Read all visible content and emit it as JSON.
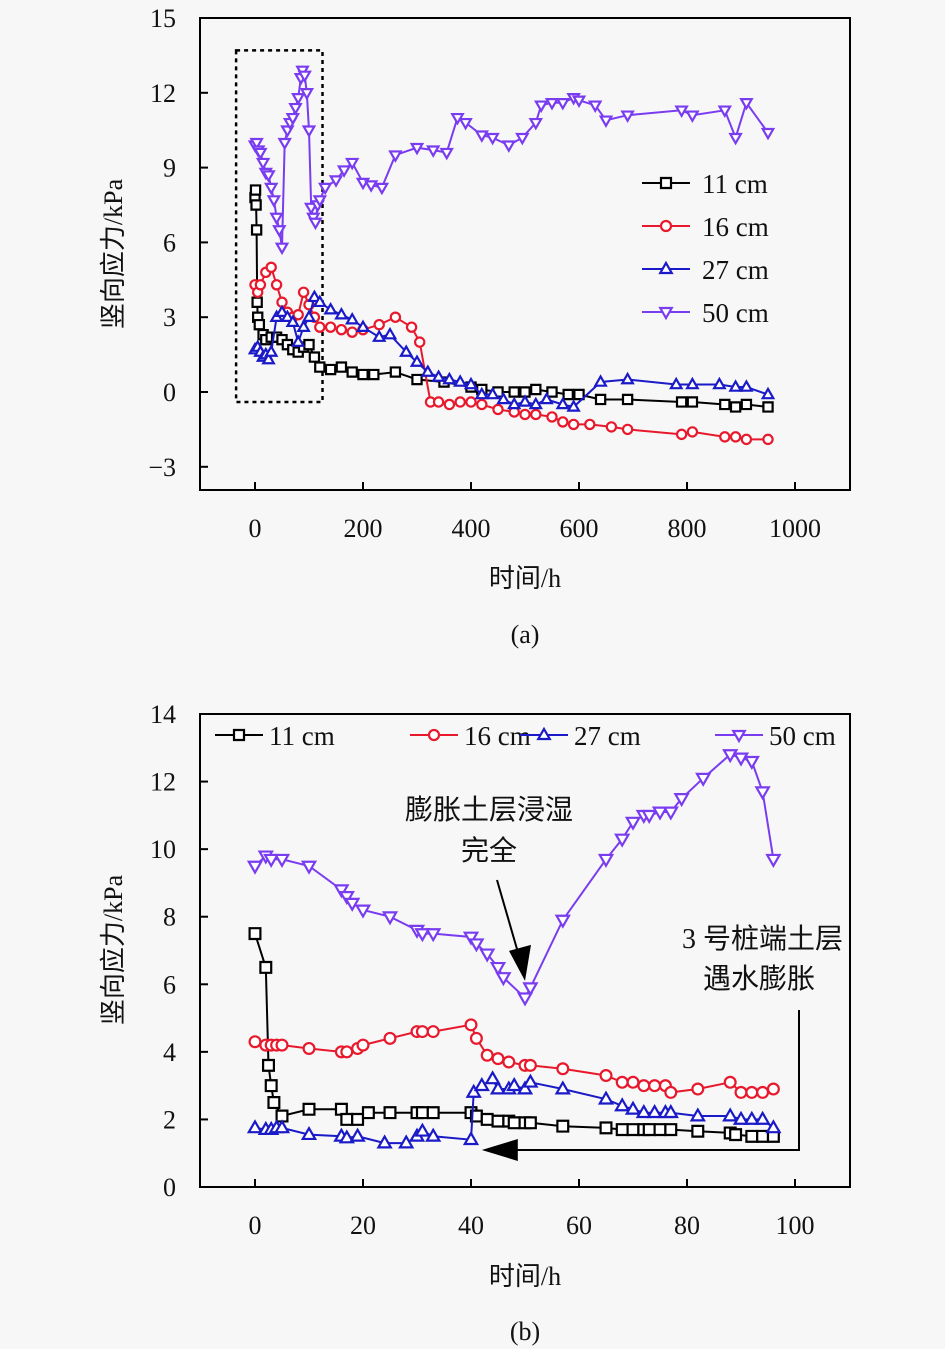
{
  "chart_data": [
    {
      "id": "a",
      "type": "line",
      "panel_label": "(a)",
      "xlabel": "时间/h",
      "ylabel": "竖向应力/kPa",
      "xlim": [
        -100,
        1100
      ],
      "ylim": [
        -4,
        15
      ],
      "xticks": [
        0,
        200,
        400,
        600,
        800,
        1000
      ],
      "xtick_labels": [
        "0",
        "200",
        "400",
        "600",
        "800",
        "1000"
      ],
      "yticks": [
        -3,
        0,
        3,
        6,
        9,
        12,
        15
      ],
      "ytick_labels": [
        "−3",
        "0",
        "3",
        "6",
        "9",
        "12",
        "15"
      ],
      "legend": {
        "placement": "right-middle",
        "entries": [
          "11 cm",
          "16 cm",
          "27 cm",
          "50 cm"
        ]
      },
      "highlight_box": {
        "x_range": [
          -35,
          125
        ],
        "y_range": [
          -0.4,
          13.7
        ],
        "style": "dashed"
      },
      "series": [
        {
          "name": "11 cm",
          "color": "#000000",
          "marker": "square",
          "x": [
            0,
            1,
            2,
            3,
            4,
            5,
            8,
            15,
            20,
            30,
            40,
            50,
            60,
            70,
            80,
            90,
            100,
            110,
            120,
            140,
            160,
            180,
            200,
            220,
            260,
            300,
            350,
            400,
            420,
            450,
            480,
            500,
            520,
            550,
            580,
            600,
            640,
            690,
            790,
            810,
            870,
            890,
            910,
            950
          ],
          "y": [
            7.8,
            8.1,
            7.5,
            6.5,
            3.6,
            3.0,
            2.7,
            2.3,
            2.1,
            2.2,
            2.2,
            2.1,
            1.9,
            1.7,
            1.6,
            1.8,
            1.9,
            1.4,
            1.0,
            0.9,
            1.0,
            0.8,
            0.7,
            0.7,
            0.8,
            0.5,
            0.4,
            0.2,
            0.1,
            0.0,
            0.0,
            0.0,
            0.1,
            0.0,
            -0.1,
            -0.1,
            -0.3,
            -0.3,
            -0.4,
            -0.4,
            -0.5,
            -0.6,
            -0.5,
            -0.6
          ]
        },
        {
          "name": "16 cm",
          "color": "#e8192c",
          "marker": "circle",
          "x": [
            0,
            5,
            10,
            20,
            30,
            40,
            50,
            60,
            70,
            80,
            90,
            100,
            110,
            120,
            140,
            160,
            180,
            200,
            230,
            260,
            290,
            305,
            325,
            340,
            360,
            380,
            400,
            420,
            450,
            480,
            500,
            520,
            550,
            570,
            590,
            620,
            660,
            690,
            790,
            810,
            870,
            890,
            910,
            950
          ],
          "y": [
            4.3,
            4.0,
            4.3,
            4.8,
            5.0,
            4.3,
            3.6,
            3.2,
            3.0,
            3.1,
            4.0,
            3.5,
            3.0,
            2.6,
            2.6,
            2.5,
            2.4,
            2.5,
            2.7,
            3.0,
            2.6,
            2.0,
            -0.4,
            -0.4,
            -0.5,
            -0.4,
            -0.4,
            -0.5,
            -0.7,
            -0.8,
            -0.9,
            -0.9,
            -1.0,
            -1.2,
            -1.3,
            -1.3,
            -1.4,
            -1.5,
            -1.7,
            -1.6,
            -1.8,
            -1.8,
            -1.9,
            -1.9
          ]
        },
        {
          "name": "27 cm",
          "color": "#1a1ac8",
          "marker": "triangle-up",
          "x": [
            0,
            5,
            10,
            15,
            20,
            25,
            30,
            40,
            50,
            60,
            70,
            80,
            90,
            100,
            110,
            120,
            140,
            160,
            180,
            200,
            230,
            250,
            280,
            300,
            320,
            340,
            360,
            380,
            400,
            420,
            440,
            460,
            480,
            500,
            520,
            540,
            570,
            590,
            640,
            690,
            780,
            810,
            860,
            890,
            910,
            950
          ],
          "y": [
            1.7,
            1.8,
            1.6,
            1.4,
            1.5,
            1.3,
            1.6,
            3.0,
            3.2,
            3.0,
            2.8,
            2.0,
            2.6,
            3.0,
            3.8,
            3.6,
            3.3,
            3.1,
            2.9,
            2.6,
            2.2,
            2.3,
            1.6,
            1.2,
            0.8,
            0.6,
            0.5,
            0.4,
            0.3,
            -0.1,
            -0.1,
            -0.3,
            -0.5,
            -0.4,
            -0.5,
            -0.3,
            -0.5,
            -0.6,
            0.4,
            0.5,
            0.3,
            0.3,
            0.3,
            0.2,
            0.2,
            -0.1
          ]
        },
        {
          "name": "50 cm",
          "color": "#7a3cf0",
          "marker": "triangle-down",
          "x": [
            0,
            3,
            6,
            10,
            15,
            20,
            25,
            30,
            35,
            40,
            45,
            50,
            55,
            60,
            65,
            70,
            75,
            80,
            85,
            88,
            92,
            96,
            100,
            104,
            108,
            112,
            116,
            120,
            130,
            150,
            165,
            180,
            200,
            215,
            235,
            260,
            300,
            330,
            355,
            375,
            390,
            420,
            440,
            470,
            495,
            520,
            530,
            550,
            570,
            590,
            600,
            630,
            650,
            690,
            790,
            810,
            870,
            890,
            910,
            950
          ],
          "y": [
            9.9,
            10.0,
            9.7,
            9.6,
            9.2,
            8.8,
            8.7,
            8.2,
            7.7,
            7.0,
            6.5,
            5.8,
            10.0,
            10.5,
            10.8,
            11.0,
            11.4,
            11.8,
            12.6,
            12.9,
            12.7,
            12.0,
            10.5,
            7.4,
            7.0,
            6.8,
            7.5,
            7.7,
            8.2,
            8.5,
            8.9,
            9.2,
            8.4,
            8.3,
            8.2,
            9.5,
            9.8,
            9.7,
            9.6,
            11.0,
            10.8,
            10.3,
            10.2,
            9.9,
            10.2,
            10.8,
            11.5,
            11.6,
            11.6,
            11.8,
            11.7,
            11.5,
            10.9,
            11.1,
            11.3,
            11.1,
            11.3,
            10.2,
            11.6,
            10.4
          ]
        }
      ]
    },
    {
      "id": "b",
      "type": "line",
      "panel_label": "(b)",
      "xlabel": "时间/h",
      "ylabel": "竖向应力/kPa",
      "xlim": [
        -10,
        110
      ],
      "ylim": [
        0,
        14
      ],
      "xticks": [
        0,
        20,
        40,
        60,
        80,
        100
      ],
      "xtick_labels": [
        "0",
        "20",
        "40",
        "60",
        "80",
        "100"
      ],
      "yticks": [
        0,
        2,
        4,
        6,
        8,
        10,
        12,
        14
      ],
      "ytick_labels": [
        "0",
        "2",
        "4",
        "6",
        "8",
        "10",
        "12",
        "14"
      ],
      "legend": {
        "placement": "top",
        "entries": [
          "11 cm",
          "16 cm",
          "27 cm",
          "50 cm"
        ]
      },
      "annotations": [
        {
          "text_lines": [
            "膨胀土层浸湿",
            "完全"
          ],
          "arrow_to": [
            50,
            6.1
          ]
        },
        {
          "text_lines": [
            "3 号桩端土层",
            "遇水膨胀"
          ],
          "arrow_to": [
            42,
            1.05
          ]
        }
      ],
      "series": [
        {
          "name": "11 cm",
          "color": "#000000",
          "marker": "square",
          "x": [
            0,
            2,
            2.5,
            3,
            3.5,
            5,
            10,
            16,
            17,
            19,
            21,
            25,
            30,
            31,
            33,
            40,
            41,
            43,
            45,
            47,
            48,
            50,
            51,
            57,
            65,
            68,
            70,
            72,
            73,
            75,
            77,
            82,
            88,
            89,
            92,
            94,
            96
          ],
          "y": [
            7.5,
            6.5,
            3.6,
            3.0,
            2.5,
            2.1,
            2.3,
            2.3,
            2.0,
            2.0,
            2.2,
            2.2,
            2.2,
            2.2,
            2.2,
            2.2,
            2.1,
            2.0,
            1.95,
            1.95,
            1.9,
            1.9,
            1.9,
            1.8,
            1.75,
            1.7,
            1.7,
            1.7,
            1.7,
            1.7,
            1.7,
            1.65,
            1.6,
            1.55,
            1.5,
            1.5,
            1.5
          ]
        },
        {
          "name": "16 cm",
          "color": "#e8192c",
          "marker": "circle",
          "x": [
            0,
            2,
            3,
            4,
            5,
            10,
            16,
            17,
            19,
            20,
            25,
            30,
            31,
            33,
            40,
            41,
            43,
            45,
            47,
            50,
            51,
            57,
            65,
            68,
            70,
            72,
            74,
            76,
            77,
            82,
            88,
            90,
            92,
            94,
            96
          ],
          "y": [
            4.3,
            4.2,
            4.2,
            4.2,
            4.2,
            4.1,
            4.0,
            4.0,
            4.1,
            4.2,
            4.4,
            4.6,
            4.6,
            4.6,
            4.8,
            4.4,
            3.9,
            3.8,
            3.7,
            3.6,
            3.6,
            3.5,
            3.3,
            3.1,
            3.1,
            3.0,
            3.0,
            3.0,
            2.8,
            2.9,
            3.1,
            2.8,
            2.8,
            2.8,
            2.9
          ]
        },
        {
          "name": "27 cm",
          "color": "#1a1ac8",
          "marker": "triangle-up",
          "x": [
            0,
            2,
            3,
            4,
            5,
            10,
            16,
            17,
            19,
            24,
            28,
            30,
            31,
            33,
            40,
            40.5,
            42,
            44,
            45,
            47,
            48,
            50,
            51,
            57,
            65,
            68,
            70,
            72,
            74,
            76,
            77,
            82,
            88,
            90,
            92,
            94,
            96
          ],
          "y": [
            1.75,
            1.7,
            1.7,
            1.75,
            1.75,
            1.55,
            1.5,
            1.45,
            1.5,
            1.3,
            1.3,
            1.5,
            1.65,
            1.5,
            1.4,
            2.8,
            3.0,
            3.2,
            2.9,
            2.9,
            3.0,
            2.9,
            3.1,
            2.9,
            2.6,
            2.4,
            2.3,
            2.2,
            2.2,
            2.2,
            2.2,
            2.1,
            2.1,
            2.0,
            2.0,
            2.0,
            1.75
          ]
        },
        {
          "name": "50 cm",
          "color": "#7a3cf0",
          "marker": "triangle-down",
          "x": [
            0,
            2,
            3,
            5,
            10,
            16,
            17,
            18,
            20,
            25,
            30,
            31,
            33,
            40,
            41,
            43,
            45,
            46,
            50,
            51,
            57,
            65,
            68,
            70,
            72,
            73,
            75,
            77,
            79,
            83,
            88,
            90,
            92,
            94,
            96
          ],
          "y": [
            9.5,
            9.8,
            9.7,
            9.7,
            9.5,
            8.8,
            8.6,
            8.4,
            8.2,
            8.0,
            7.6,
            7.5,
            7.5,
            7.4,
            7.2,
            6.9,
            6.5,
            6.2,
            5.6,
            5.9,
            7.9,
            9.7,
            10.3,
            10.8,
            11.0,
            11.0,
            11.1,
            11.1,
            11.5,
            12.1,
            12.8,
            12.7,
            12.6,
            11.7,
            9.7
          ]
        }
      ]
    }
  ]
}
